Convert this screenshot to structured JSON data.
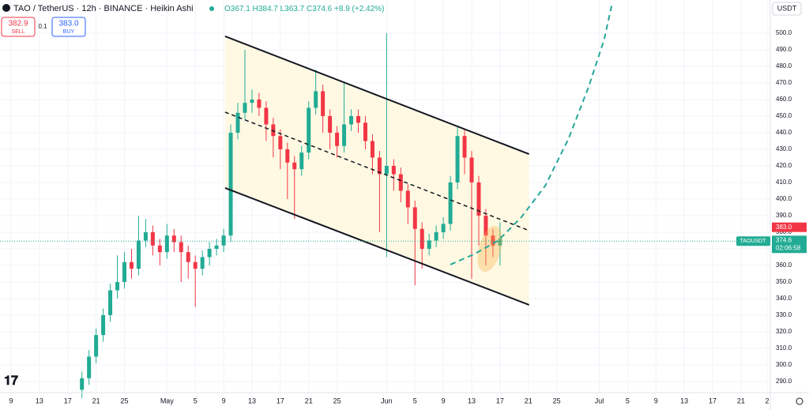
{
  "header": {
    "symbol": "TAO / TetherUS · 12h · BINANCE · Heikin Ashi",
    "legend_values": [
      "O367.1",
      "H384.7",
      "L363.7",
      "C374.6",
      "+8.9 (+2.42%)"
    ],
    "sell_price": "382.9",
    "sell_label": "SELL",
    "quantity": "0.1",
    "buy_price": "383.0",
    "buy_label": "BUY",
    "currency": "USDT"
  },
  "chart_data": {
    "type": "candlestick",
    "up_color": "#22ab94",
    "down_color": "#f23645",
    "grid": true,
    "x": [
      10,
      11,
      12,
      13,
      14,
      15,
      16,
      17,
      18,
      19,
      20,
      21,
      22,
      23,
      24,
      25,
      26,
      27,
      28,
      29,
      30,
      31,
      32,
      33,
      34,
      35,
      36,
      37,
      38,
      39,
      40,
      41,
      42,
      43,
      44,
      45,
      46,
      47,
      48,
      49,
      50,
      51,
      52,
      53,
      54,
      55,
      56,
      57,
      58,
      59,
      60,
      61,
      62,
      63,
      64,
      65,
      66,
      67,
      68,
      69
    ],
    "open": [
      285,
      292,
      305,
      318,
      330,
      345,
      350,
      362,
      358,
      375,
      380,
      372,
      368,
      378,
      374,
      368,
      362,
      358,
      365,
      370,
      372,
      378,
      440,
      452,
      458,
      460,
      455,
      445,
      438,
      430,
      422,
      418,
      428,
      455,
      465,
      450,
      440,
      432,
      445,
      450,
      446,
      435,
      425,
      415,
      420,
      415,
      405,
      395,
      382,
      370,
      375,
      380,
      385,
      410,
      438,
      425,
      410,
      390,
      378,
      372
    ],
    "high": [
      296,
      309,
      322,
      334,
      349,
      366,
      368,
      370,
      390,
      388,
      384,
      376,
      385,
      382,
      378,
      372,
      366,
      369,
      374,
      376,
      382,
      445,
      458,
      490,
      466,
      464,
      459,
      449,
      442,
      434,
      426,
      432,
      459,
      478,
      469,
      454,
      444,
      470,
      454,
      454,
      450,
      439,
      429,
      500,
      424,
      419,
      409,
      399,
      386,
      379,
      384,
      389,
      414,
      444,
      442,
      429,
      414,
      394,
      382,
      386
    ],
    "low": [
      280,
      288,
      301,
      314,
      326,
      340,
      346,
      352,
      354,
      371,
      366,
      360,
      364,
      368,
      350,
      352,
      335,
      354,
      360,
      366,
      368,
      374,
      436,
      448,
      452,
      450,
      435,
      425,
      418,
      400,
      388,
      414,
      424,
      451,
      440,
      430,
      425,
      428,
      441,
      440,
      430,
      415,
      380,
      365,
      405,
      398,
      385,
      348,
      358,
      366,
      371,
      376,
      381,
      406,
      415,
      352,
      372,
      360,
      365,
      360
    ],
    "close": [
      292,
      305,
      318,
      330,
      345,
      350,
      362,
      358,
      375,
      380,
      372,
      368,
      378,
      374,
      368,
      362,
      358,
      365,
      370,
      372,
      378,
      440,
      452,
      458,
      460,
      455,
      445,
      438,
      430,
      422,
      418,
      428,
      455,
      465,
      450,
      440,
      432,
      445,
      450,
      446,
      435,
      425,
      415,
      420,
      415,
      405,
      395,
      382,
      370,
      375,
      380,
      385,
      410,
      438,
      425,
      410,
      390,
      378,
      372,
      376
    ],
    "xlim": [
      -1.56,
      107.14
    ],
    "ylim": [
      283.3,
      520
    ],
    "xticks": [
      {
        "value": 0,
        "label": "9"
      },
      {
        "value": 4,
        "label": "13"
      },
      {
        "value": 8,
        "label": "17"
      },
      {
        "value": 12,
        "label": "21"
      },
      {
        "value": 16,
        "label": "25"
      },
      {
        "value": 22,
        "label": "May"
      },
      {
        "value": 26,
        "label": "5"
      },
      {
        "value": 30,
        "label": "9"
      },
      {
        "value": 34,
        "label": "13"
      },
      {
        "value": 38,
        "label": "17"
      },
      {
        "value": 42,
        "label": "21"
      },
      {
        "value": 46,
        "label": "25"
      },
      {
        "value": 53,
        "label": "Jun"
      },
      {
        "value": 57,
        "label": "5"
      },
      {
        "value": 61,
        "label": "9"
      },
      {
        "value": 65,
        "label": "13"
      },
      {
        "value": 69,
        "label": "17"
      },
      {
        "value": 73,
        "label": "21"
      },
      {
        "value": 77,
        "label": "25"
      },
      {
        "value": 83,
        "label": "Jul"
      },
      {
        "value": 87,
        "label": "5"
      },
      {
        "value": 91,
        "label": "9"
      },
      {
        "value": 95,
        "label": "13"
      },
      {
        "value": 99,
        "label": "17"
      },
      {
        "value": 103,
        "label": "21"
      },
      {
        "value": 106.7,
        "label": "2"
      }
    ],
    "yticks": [
      {
        "value": 290,
        "label": "290.0"
      },
      {
        "value": 300,
        "label": "300.0"
      },
      {
        "value": 310,
        "label": "310.0"
      },
      {
        "value": 320,
        "label": "320.0"
      },
      {
        "value": 330,
        "label": "330.0"
      },
      {
        "value": 340,
        "label": "340.0"
      },
      {
        "value": 350,
        "label": "350.0"
      },
      {
        "value": 360,
        "label": "360.0"
      },
      {
        "value": 370,
        "label": "370.0"
      },
      {
        "value": 380,
        "label": "380.0"
      },
      {
        "value": 390,
        "label": "390.0"
      },
      {
        "value": 400,
        "label": "400.0"
      },
      {
        "value": 410,
        "label": "410.0"
      },
      {
        "value": 420,
        "label": "420.0"
      },
      {
        "value": 430,
        "label": "430.0"
      },
      {
        "value": 440,
        "label": "440.0"
      },
      {
        "value": 450,
        "label": "450.0"
      },
      {
        "value": 460,
        "label": "460.0"
      },
      {
        "value": 470,
        "label": "470.0"
      },
      {
        "value": 480,
        "label": "480.0"
      },
      {
        "value": 490,
        "label": "490.0"
      },
      {
        "value": 500,
        "label": "500.0"
      }
    ],
    "channel": {
      "upper": [
        [
          30.2,
          498.1
        ],
        [
          73.1,
          427.1
        ]
      ],
      "middle": [
        [
          30.2,
          452.4
        ],
        [
          73.1,
          381.0
        ]
      ],
      "lower": [
        [
          30.2,
          406.7
        ],
        [
          73.1,
          336.2
        ]
      ]
    },
    "projection": {
      "color": "#26a69a",
      "points": [
        [
          62.0,
          360.5
        ],
        [
          65.3,
          366.7
        ],
        [
          68.7,
          374.8
        ],
        [
          72.0,
          389.0
        ],
        [
          75.4,
          408.1
        ],
        [
          78.7,
          436.7
        ],
        [
          81.5,
          467.6
        ],
        [
          83.7,
          496.2
        ],
        [
          84.8,
          517.6
        ]
      ]
    },
    "ask": {
      "value": 383,
      "label": "383.0"
    },
    "last_price": {
      "symbol": "TAOUSDT",
      "value": 374.6,
      "countdown": "02:06:58"
    }
  }
}
